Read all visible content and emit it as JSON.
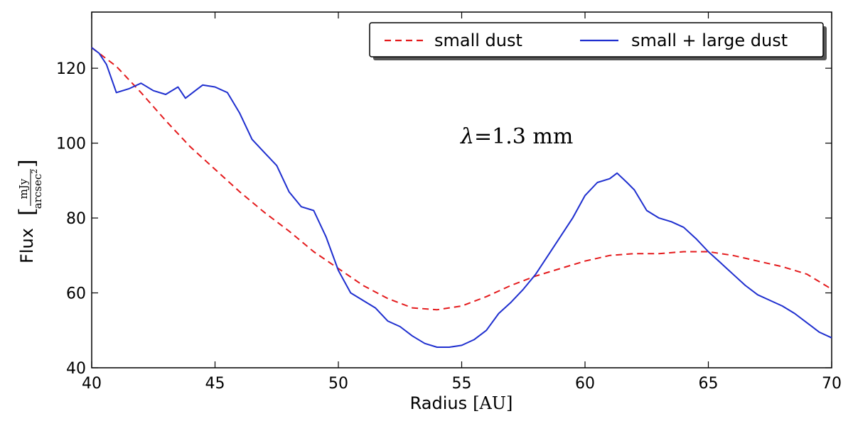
{
  "chart_data": {
    "type": "line",
    "xlabel": "Radius",
    "xlabel_unit": "[AU]",
    "ylabel": "Flux",
    "ylabel_unit_num": "mJy",
    "ylabel_unit_den": "arcsec",
    "ylabel_unit_den_exp": "2",
    "annotation": {
      "symbol": "λ",
      "text": "=1.3 mm",
      "x": 57.5,
      "y": 102
    },
    "xlim": [
      40,
      70
    ],
    "ylim": [
      40,
      135
    ],
    "xticks": [
      40,
      45,
      50,
      55,
      60,
      65,
      70
    ],
    "yticks": [
      40,
      60,
      80,
      100,
      120
    ],
    "xtick_labels": [
      "40",
      "45",
      "50",
      "55",
      "60",
      "65",
      "70"
    ],
    "ytick_labels": [
      "40",
      "60",
      "80",
      "100",
      "120"
    ],
    "legend_position": "top-right",
    "series": [
      {
        "name": "small dust",
        "color": "#e41a1c",
        "style": "dashed",
        "x": [
          40.0,
          41,
          42,
          43,
          44,
          45,
          46,
          47,
          48,
          49,
          50,
          51,
          52,
          53,
          54,
          55,
          56,
          57,
          58,
          59,
          60,
          61,
          62,
          63,
          64,
          65,
          66,
          67,
          68,
          69,
          70
        ],
        "y": [
          125.5,
          120.5,
          113.5,
          106,
          99,
          93,
          87,
          81.5,
          76.5,
          71,
          66.5,
          62,
          58.5,
          56,
          55.5,
          56.5,
          59,
          62,
          64.5,
          66.5,
          68.5,
          70,
          70.5,
          70.5,
          71,
          71,
          70,
          68.5,
          67,
          65,
          61
        ]
      },
      {
        "name": "small + large dust",
        "color": "#1f2fcf",
        "style": "solid",
        "x": [
          40.0,
          40.3,
          40.6,
          41.0,
          41.5,
          42.0,
          42.5,
          43.0,
          43.5,
          43.8,
          44.2,
          44.5,
          45.0,
          45.5,
          46.0,
          46.5,
          47.0,
          47.5,
          48.0,
          48.5,
          49.0,
          49.5,
          50.0,
          50.5,
          51.0,
          51.5,
          52.0,
          52.5,
          53.0,
          53.5,
          54.0,
          54.5,
          55.0,
          55.5,
          56.0,
          56.5,
          57.0,
          57.5,
          58.0,
          58.5,
          59.0,
          59.5,
          60.0,
          60.5,
          61.0,
          61.3,
          61.7,
          62.0,
          62.5,
          63.0,
          63.5,
          64.0,
          64.5,
          65.0,
          65.5,
          66.0,
          66.5,
          67.0,
          67.5,
          68.0,
          68.5,
          69.0,
          69.5,
          70.0
        ],
        "y": [
          125.5,
          124,
          121,
          113.5,
          114.5,
          116,
          114,
          113,
          115,
          112,
          114,
          115.5,
          115,
          113.5,
          108,
          101,
          97.5,
          94,
          87,
          83,
          82,
          75,
          66,
          60,
          58,
          56,
          52.5,
          51,
          48.5,
          46.5,
          45.5,
          45.5,
          46,
          47.5,
          50,
          54.5,
          57.5,
          61,
          65,
          70,
          75,
          80,
          86,
          89.5,
          90.5,
          92,
          89.5,
          87.5,
          82,
          80,
          79,
          77.5,
          74.5,
          71,
          68,
          65,
          62,
          59.5,
          58,
          56.5,
          54.5,
          52,
          49.5,
          48
        ]
      }
    ]
  },
  "colors": {
    "small_dust": "#e41a1c",
    "small_large_dust": "#1f2fcf"
  }
}
